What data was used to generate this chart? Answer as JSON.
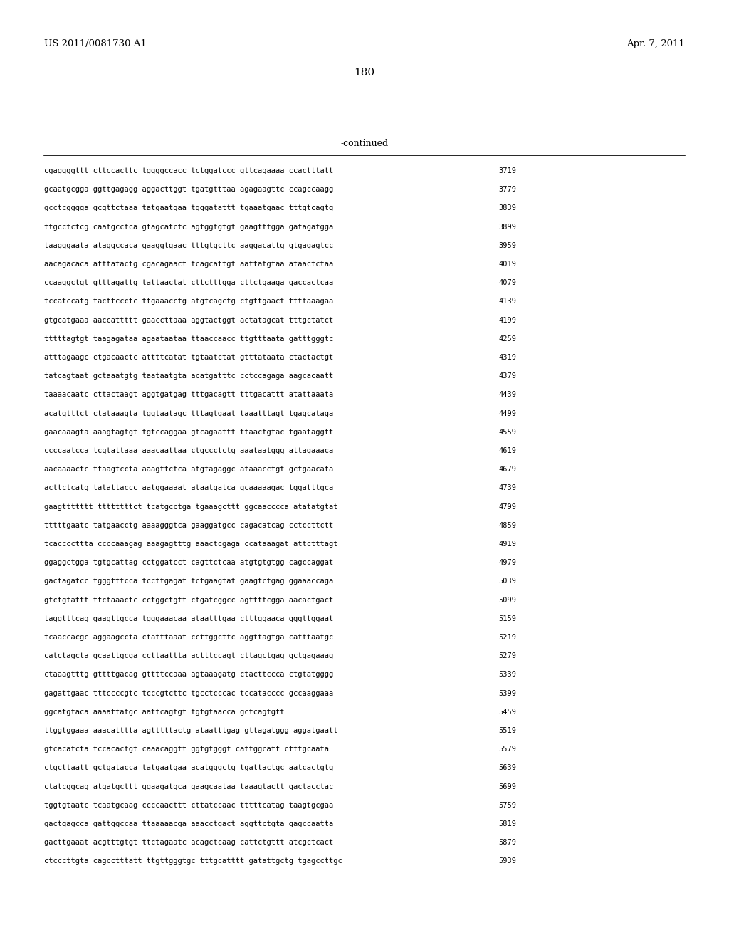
{
  "header_left": "US 2011/0081730 A1",
  "header_right": "Apr. 7, 2011",
  "page_number": "180",
  "continued_label": "-continued",
  "background_color": "#ffffff",
  "text_color": "#000000",
  "font_size_header": 9.5,
  "font_size_page": 11,
  "font_size_continued": 9,
  "font_size_sequence": 7.5,
  "sequence_lines": [
    [
      "cgaggggttt cttccacttc tggggccacc tctggatccc gttcagaaaa ccactttatt",
      "3719"
    ],
    [
      "gcaatgcgga ggttgagagg aggacttggt tgatgtttaa agagaagttc ccagccaagg",
      "3779"
    ],
    [
      "gcctcgggga gcgttctaaa tatgaatgaa tgggatattt tgaaatgaac tttgtcagtg",
      "3839"
    ],
    [
      "ttgcctctcg caatgcctca gtagcatctc agtggtgtgt gaagtttgga gatagatgga",
      "3899"
    ],
    [
      "taagggaata ataggccaca gaaggtgaac tttgtgcttc aaggacattg gtgagagtcc",
      "3959"
    ],
    [
      "aacagacaca atttatactg cgacagaact tcagcattgt aattatgtaa ataactctaa",
      "4019"
    ],
    [
      "ccaaggctgt gtttagattg tattaactat cttctttgga cttctgaaga gaccactcaa",
      "4079"
    ],
    [
      "tccatccatg tacttccctc ttgaaacctg atgtcagctg ctgttgaact ttttaaagaa",
      "4139"
    ],
    [
      "gtgcatgaaa aaccattttt gaaccttaaa aggtactggt actatagcat tttgctatct",
      "4199"
    ],
    [
      "tttttagtgt taagagataa agaataataa ttaaccaacc ttgtttaata gatttgggtc",
      "4259"
    ],
    [
      "atttagaagc ctgacaactc attttcatat tgtaatctat gtttataata ctactactgt",
      "4319"
    ],
    [
      "tatcagtaat gctaaatgtg taataatgta acatgatttc cctccagaga aagcacaatt",
      "4379"
    ],
    [
      "taaaacaatc cttactaagt aggtgatgag tttgacagtt tttgacattt atattaaata",
      "4439"
    ],
    [
      "acatgtttct ctataaagta tggtaatagc tttagtgaat taaatttagt tgagcataga",
      "4499"
    ],
    [
      "gaacaaagta aaagtagtgt tgtccaggaa gtcagaattt ttaactgtac tgaataggtt",
      "4559"
    ],
    [
      "ccccaatcca tcgtattaaa aaacaattaa ctgccctctg aaataatggg attagaaaca",
      "4619"
    ],
    [
      "aacaaaactc ttaagtccta aaagttctca atgtagaggc ataaacctgt gctgaacata",
      "4679"
    ],
    [
      "acttctcatg tatattaccc aatggaaaat ataatgatca gcaaaaagac tggatttgca",
      "4739"
    ],
    [
      "gaagttttttt ttttttttct tcatgcctga tgaaagcttt ggcaacccca atatatgtat",
      "4799"
    ],
    [
      "tttttgaatc tatgaacctg aaaagggtca gaaggatgcc cagacatcag cctccttctt",
      "4859"
    ],
    [
      "tcaccccttta ccccaaagag aaagagtttg aaactcgaga ccataaagat attctttagt",
      "4919"
    ],
    [
      "ggaggctgga tgtgcattag cctggatcct cagttctcaa atgtgtgtgg cagccaggat",
      "4979"
    ],
    [
      "gactagatcc tgggtttcca tccttgagat tctgaagtat gaagtctgag ggaaaccaga",
      "5039"
    ],
    [
      "gtctgtattt ttctaaactc cctggctgtt ctgatcggcc agttttcgga aacactgact",
      "5099"
    ],
    [
      "taggtttcag gaagttgcca tgggaaacaa ataatttgaa ctttggaaca gggttggaat",
      "5159"
    ],
    [
      "tcaaccacgc aggaagccta ctatttaaat ccttggcttc aggttagtga catttaatgc",
      "5219"
    ],
    [
      "catctagcta gcaattgcga ccttaattta actttccagt cttagctgag gctgagaaag",
      "5279"
    ],
    [
      "ctaaagtttg gttttgacag gttttccaaa agtaaagatg ctacttccca ctgtatgggg",
      "5339"
    ],
    [
      "gagattgaac tttccccgtc tcccgtcttc tgcctcccac tccatacccc gccaaggaaa",
      "5399"
    ],
    [
      "ggcatgtaca aaaattatgc aattcagtgt tgtgtaacca gctcagtgtt",
      "5459"
    ],
    [
      "ttggtggaaa aaacatttta agtttttactg ataatttgag gttagatggg aggatgaatt",
      "5519"
    ],
    [
      "gtcacatcta tccacactgt caaacaggtt ggtgtgggt cattggcatt ctttgcaata",
      "5579"
    ],
    [
      "ctgcttaatt gctgatacca tatgaatgaa acatgggctg tgattactgc aatcactgtg",
      "5639"
    ],
    [
      "ctatcggcag atgatgcttt ggaagatgca gaagcaataa taaagtactt gactacctac",
      "5699"
    ],
    [
      "tggtgtaatc tcaatgcaag ccccaacttt cttatccaac tttttcatag taagtgcgaa",
      "5759"
    ],
    [
      "gactgagcca gattggccaa ttaaaaacga aaacctgact aggttctgta gagccaatta",
      "5819"
    ],
    [
      "gacttgaaat acgtttgtgt ttctagaatc acagctcaag cattctgttt atcgctcact",
      "5879"
    ],
    [
      "ctcccttgta cagcctttatt ttgttgggtgc tttgcatttt gatattgctg tgagccttgc",
      "5939"
    ]
  ]
}
